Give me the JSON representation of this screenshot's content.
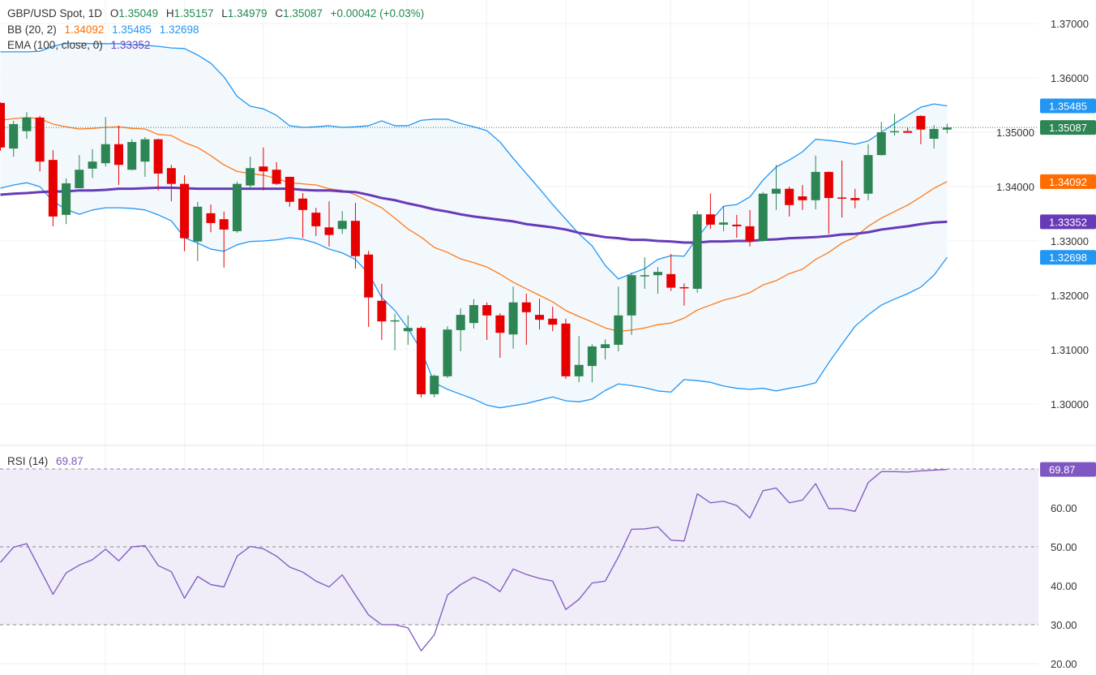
{
  "header": {
    "symbol": "GBP/USD Spot, 1D",
    "o_label": "O",
    "open": "1.35049",
    "h_label": "H",
    "high": "1.35157",
    "l_label": "L",
    "low": "1.34979",
    "c_label": "C",
    "close": "1.35087",
    "change": "+0.00042 (+0.03%)"
  },
  "bb": {
    "label": "BB (20, 2)",
    "basis": "1.34092",
    "upper": "1.35485",
    "lower": "1.32698"
  },
  "ema": {
    "label": "EMA (100, close, 0)",
    "value": "1.33352"
  },
  "rsi": {
    "label": "RSI (14)",
    "value": "69.87"
  },
  "colors": {
    "up": "#2c8553",
    "down": "#e60000",
    "bb_band": "#2196f3",
    "bb_fill": "#f3f8fd",
    "bb_basis": "#ff7a1a",
    "ema": "#673ab7",
    "rsi_line": "#7e57c2",
    "rsi_fill": "#f0ecf8",
    "close_label": "#2c8553",
    "upper_label": "#2196f3",
    "basis_label": "#ff6d00",
    "ema_label": "#673ab7",
    "lower_label": "#2196f3",
    "rsi_label": "#7e57c2"
  },
  "chart_data": [
    {
      "type": "candlestick",
      "title": "GBP/USD Spot, 1D",
      "ylim": [
        1.2935,
        1.3743
      ],
      "grid": true,
      "y_ticks": [
        {
          "value": 1.37,
          "label": "1.37000"
        },
        {
          "value": 1.36,
          "label": "1.36000"
        },
        {
          "value": 1.35,
          "label": "1.35000"
        },
        {
          "value": 1.34,
          "label": "1.34000"
        },
        {
          "value": 1.33,
          "label": "1.33000"
        },
        {
          "value": 1.32,
          "label": "1.32000"
        },
        {
          "value": 1.31,
          "label": "1.31000"
        },
        {
          "value": 1.3,
          "label": "1.30000"
        }
      ],
      "last_price": 1.35087,
      "candles_ohlc": [
        [
          1.3554,
          1.3555,
          1.3466,
          1.3472
        ],
        [
          1.347,
          1.3521,
          1.3455,
          1.3515
        ],
        [
          1.3502,
          1.3537,
          1.3488,
          1.3527
        ],
        [
          1.3527,
          1.353,
          1.3428,
          1.3446
        ],
        [
          1.3449,
          1.3467,
          1.3327,
          1.3345
        ],
        [
          1.3348,
          1.3415,
          1.3331,
          1.3406
        ],
        [
          1.3397,
          1.3458,
          1.3397,
          1.3431
        ],
        [
          1.3433,
          1.3469,
          1.3416,
          1.3446
        ],
        [
          1.3443,
          1.3528,
          1.3437,
          1.3478
        ],
        [
          1.3478,
          1.3512,
          1.3403,
          1.344
        ],
        [
          1.3431,
          1.3487,
          1.343,
          1.3482
        ],
        [
          1.3446,
          1.3491,
          1.3418,
          1.3487
        ],
        [
          1.3487,
          1.3488,
          1.3393,
          1.3424
        ],
        [
          1.3434,
          1.344,
          1.3373,
          1.3405
        ],
        [
          1.3405,
          1.3421,
          1.3281,
          1.3305
        ],
        [
          1.3299,
          1.3372,
          1.3263,
          1.3363
        ],
        [
          1.3351,
          1.3367,
          1.3316,
          1.3333
        ],
        [
          1.334,
          1.3354,
          1.3251,
          1.3321
        ],
        [
          1.3318,
          1.3409,
          1.3315,
          1.3405
        ],
        [
          1.3402,
          1.3455,
          1.3396,
          1.3434
        ],
        [
          1.3437,
          1.3472,
          1.3393,
          1.3428
        ],
        [
          1.3431,
          1.3445,
          1.3403,
          1.3405
        ],
        [
          1.3418,
          1.3418,
          1.3363,
          1.3372
        ],
        [
          1.3378,
          1.3388,
          1.3306,
          1.3357
        ],
        [
          1.3352,
          1.3361,
          1.3309,
          1.3327
        ],
        [
          1.3325,
          1.3373,
          1.329,
          1.3311
        ],
        [
          1.3322,
          1.3355,
          1.3313,
          1.3337
        ],
        [
          1.3337,
          1.337,
          1.3249,
          1.3272
        ],
        [
          1.3275,
          1.3282,
          1.3142,
          1.3196
        ],
        [
          1.319,
          1.3221,
          1.3118,
          1.3152
        ],
        [
          1.3152,
          1.3166,
          1.3099,
          1.3154
        ],
        [
          1.3134,
          1.3163,
          1.3109,
          1.314
        ],
        [
          1.314,
          1.3143,
          1.3012,
          1.3018
        ],
        [
          1.3018,
          1.3054,
          1.3012,
          1.3052
        ],
        [
          1.3051,
          1.3143,
          1.3048,
          1.3137
        ],
        [
          1.3136,
          1.3176,
          1.3097,
          1.3164
        ],
        [
          1.3149,
          1.3193,
          1.3139,
          1.3182
        ],
        [
          1.3182,
          1.3187,
          1.3118,
          1.3163
        ],
        [
          1.3163,
          1.3167,
          1.3085,
          1.3131
        ],
        [
          1.3128,
          1.3216,
          1.3102,
          1.3187
        ],
        [
          1.3187,
          1.3203,
          1.3109,
          1.3169
        ],
        [
          1.3164,
          1.3194,
          1.3137,
          1.3155
        ],
        [
          1.3157,
          1.3179,
          1.3134,
          1.3146
        ],
        [
          1.3148,
          1.3157,
          1.3046,
          1.3051
        ],
        [
          1.3051,
          1.3125,
          1.304,
          1.3072
        ],
        [
          1.307,
          1.311,
          1.304,
          1.3106
        ],
        [
          1.3103,
          1.3119,
          1.3082,
          1.311
        ],
        [
          1.3109,
          1.3216,
          1.3097,
          1.3163
        ],
        [
          1.3163,
          1.3242,
          1.3127,
          1.3237
        ],
        [
          1.3236,
          1.327,
          1.3212,
          1.3237
        ],
        [
          1.3237,
          1.3252,
          1.3203,
          1.3243
        ],
        [
          1.3239,
          1.3276,
          1.3208,
          1.3214
        ],
        [
          1.3215,
          1.3222,
          1.3181,
          1.3213
        ],
        [
          1.3212,
          1.3355,
          1.3205,
          1.3349
        ],
        [
          1.3349,
          1.3387,
          1.3322,
          1.333
        ],
        [
          1.333,
          1.3364,
          1.3318,
          1.3334
        ],
        [
          1.333,
          1.3348,
          1.3306,
          1.3327
        ],
        [
          1.3327,
          1.3357,
          1.329,
          1.33
        ],
        [
          1.33,
          1.339,
          1.3299,
          1.3387
        ],
        [
          1.3387,
          1.344,
          1.3357,
          1.3396
        ],
        [
          1.3396,
          1.34,
          1.3345,
          1.3366
        ],
        [
          1.3382,
          1.3403,
          1.3357,
          1.3375
        ],
        [
          1.3375,
          1.3457,
          1.3358,
          1.3427
        ],
        [
          1.3427,
          1.3428,
          1.3313,
          1.3379
        ],
        [
          1.338,
          1.3448,
          1.3343,
          1.3378
        ],
        [
          1.3379,
          1.3396,
          1.336,
          1.3375
        ],
        [
          1.3387,
          1.3478,
          1.3375,
          1.3458
        ],
        [
          1.3458,
          1.3519,
          1.3457,
          1.35
        ],
        [
          1.35,
          1.3534,
          1.3494,
          1.3502
        ],
        [
          1.3502,
          1.3509,
          1.35,
          1.3499
        ],
        [
          1.353,
          1.3531,
          1.3478,
          1.3505
        ],
        [
          1.3488,
          1.3513,
          1.347,
          1.3506
        ],
        [
          1.35049,
          1.35157,
          1.34979,
          1.35087
        ]
      ],
      "series": [
        {
          "name": "BB (20, 2)",
          "line": "upper",
          "values": [
            1.3648,
            1.3648,
            1.3648,
            1.3649,
            1.3658,
            1.3664,
            1.3664,
            1.3663,
            1.3663,
            1.3663,
            1.3661,
            1.366,
            1.3658,
            1.3655,
            1.3654,
            1.3642,
            1.3627,
            1.3602,
            1.3566,
            1.3548,
            1.3543,
            1.3531,
            1.3512,
            1.3509,
            1.351,
            1.3512,
            1.3509,
            1.351,
            1.3512,
            1.3521,
            1.3512,
            1.3512,
            1.3522,
            1.3524,
            1.3524,
            1.3516,
            1.351,
            1.3503,
            1.3482,
            1.3452,
            1.3424,
            1.3396,
            1.3367,
            1.334,
            1.3313,
            1.3291,
            1.3255,
            1.323,
            1.324,
            1.3249,
            1.3266,
            1.3273,
            1.3272,
            1.3306,
            1.3336,
            1.3364,
            1.3367,
            1.3381,
            1.3412,
            1.3436,
            1.3449,
            1.3464,
            1.3487,
            1.3485,
            1.3482,
            1.3478,
            1.3484,
            1.35,
            1.3516,
            1.3531,
            1.3546,
            1.3552,
            1.35485
          ]
        },
        {
          "name": "BB (20, 2)",
          "line": "basis",
          "values": [
            1.3522,
            1.3525,
            1.3527,
            1.3525,
            1.3515,
            1.351,
            1.3506,
            1.3507,
            1.3509,
            1.351,
            1.3507,
            1.3506,
            1.3496,
            1.3494,
            1.3481,
            1.3472,
            1.3457,
            1.344,
            1.3428,
            1.3424,
            1.3421,
            1.3415,
            1.3407,
            1.3405,
            1.3403,
            1.3396,
            1.3393,
            1.3385,
            1.3373,
            1.3361,
            1.3342,
            1.3322,
            1.3307,
            1.3288,
            1.3279,
            1.3267,
            1.326,
            1.3252,
            1.3239,
            1.3224,
            1.3212,
            1.32,
            1.3188,
            1.3172,
            1.3161,
            1.3151,
            1.314,
            1.3134,
            1.3136,
            1.314,
            1.3146,
            1.3149,
            1.3158,
            1.3173,
            1.3182,
            1.3191,
            1.3197,
            1.3205,
            1.3219,
            1.3227,
            1.324,
            1.3248,
            1.3266,
            1.3279,
            1.3296,
            1.3307,
            1.3327,
            1.3342,
            1.3354,
            1.3366,
            1.3381,
            1.3397,
            1.34092
          ]
        },
        {
          "name": "BB (20, 2)",
          "line": "lower",
          "values": [
            1.3397,
            1.3403,
            1.3407,
            1.34,
            1.3373,
            1.3358,
            1.3349,
            1.3357,
            1.3361,
            1.3361,
            1.336,
            1.3357,
            1.3348,
            1.3337,
            1.3306,
            1.3296,
            1.3285,
            1.3281,
            1.3293,
            1.3299,
            1.33,
            1.3302,
            1.3306,
            1.3303,
            1.3296,
            1.3285,
            1.3278,
            1.3266,
            1.324,
            1.3196,
            1.3172,
            1.3139,
            1.3099,
            1.3039,
            1.3027,
            1.3018,
            1.3009,
            1.2998,
            1.2993,
            1.2997,
            1.3001,
            1.3007,
            1.3013,
            1.3006,
            1.3004,
            1.3009,
            1.3025,
            1.3037,
            1.3034,
            1.303,
            1.3024,
            1.3022,
            1.3045,
            1.3043,
            1.304,
            1.3033,
            1.3029,
            1.3027,
            1.3029,
            1.3024,
            1.3029,
            1.3033,
            1.3039,
            1.3076,
            1.311,
            1.3143,
            1.3164,
            1.3182,
            1.3193,
            1.3203,
            1.3215,
            1.3237,
            1.32698
          ]
        },
        {
          "name": "EMA (100, close, 0)",
          "line": "ema",
          "values": [
            1.3385,
            1.3387,
            1.3388,
            1.339,
            1.3391,
            1.3391,
            1.3393,
            1.3393,
            1.3394,
            1.3396,
            1.3396,
            1.3397,
            1.3398,
            1.3398,
            1.3397,
            1.3396,
            1.3396,
            1.3396,
            1.3396,
            1.3396,
            1.3396,
            1.3396,
            1.3396,
            1.3394,
            1.3393,
            1.3393,
            1.3391,
            1.339,
            1.3385,
            1.3379,
            1.3375,
            1.3369,
            1.3364,
            1.3358,
            1.3354,
            1.3349,
            1.3345,
            1.3342,
            1.3339,
            1.3336,
            1.3331,
            1.3328,
            1.3325,
            1.3321,
            1.3315,
            1.3311,
            1.3307,
            1.3305,
            1.3302,
            1.3302,
            1.33,
            1.3299,
            1.3297,
            1.3297,
            1.3299,
            1.3299,
            1.33,
            1.33,
            1.3302,
            1.3303,
            1.3305,
            1.3306,
            1.3307,
            1.3309,
            1.3312,
            1.3313,
            1.3316,
            1.3321,
            1.3324,
            1.3327,
            1.3331,
            1.3334,
            1.33352
          ]
        }
      ]
    },
    {
      "type": "line",
      "title": "RSI (14)",
      "ylim": [
        18.5,
        71
      ],
      "grid": true,
      "y_ticks": [
        {
          "value": 60,
          "label": "60.00"
        },
        {
          "value": 50,
          "label": "50.00"
        },
        {
          "value": 40,
          "label": "40.00"
        },
        {
          "value": 30,
          "label": "30.00"
        },
        {
          "value": 20,
          "label": "20.00"
        }
      ],
      "bands": {
        "upper": 70,
        "middle": 50,
        "lower": 30
      },
      "series": [
        {
          "name": "RSI (14)",
          "values": [
            46.0,
            49.9,
            50.8,
            44.3,
            37.8,
            43.3,
            45.3,
            46.7,
            49.4,
            46.4,
            50.0,
            50.3,
            45.2,
            43.6,
            36.8,
            42.4,
            40.3,
            39.7,
            47.6,
            50.1,
            49.5,
            47.6,
            44.8,
            43.5,
            41.2,
            39.7,
            42.8,
            37.6,
            32.5,
            30.0,
            30.0,
            29.2,
            23.3,
            27.4,
            37.6,
            40.3,
            42.2,
            40.8,
            38.5,
            44.3,
            42.9,
            41.9,
            41.2,
            33.9,
            36.5,
            40.7,
            41.2,
            47.4,
            54.5,
            54.6,
            55.1,
            51.7,
            51.5,
            63.6,
            61.3,
            61.7,
            60.6,
            57.4,
            64.4,
            65.1,
            61.3,
            62.0,
            66.2,
            59.8,
            59.8,
            59.1,
            66.5,
            69.3,
            69.3,
            69.2,
            69.5,
            69.7,
            69.87
          ]
        }
      ]
    }
  ]
}
